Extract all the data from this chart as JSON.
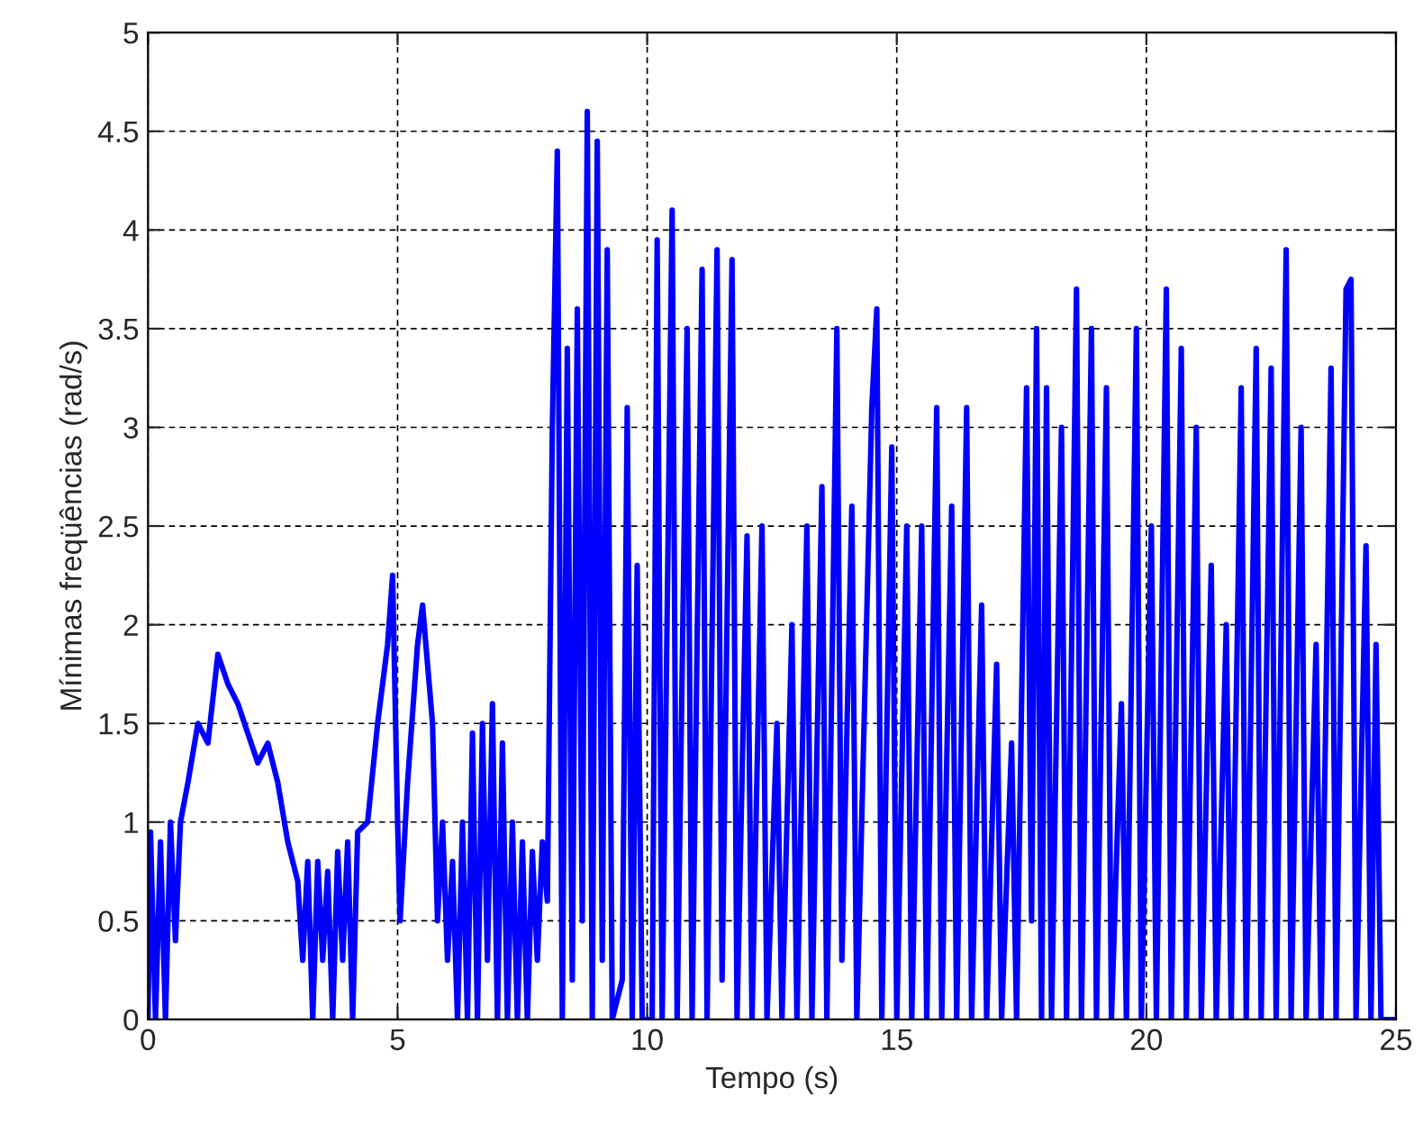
{
  "chart_data": {
    "type": "line",
    "xlabel": "Tempo (s)",
    "ylabel": "Mínimas freqüências (rad/s)",
    "xlim": [
      0,
      25
    ],
    "ylim": [
      0,
      5
    ],
    "xticks": [
      0,
      5,
      10,
      15,
      20,
      25
    ],
    "yticks": [
      0,
      0.5,
      1,
      1.5,
      2,
      2.5,
      3,
      3.5,
      4,
      4.5,
      5
    ],
    "grid": true,
    "marker": "none",
    "line_style": "solid",
    "series": [
      {
        "color": "#0000ff",
        "x": [
          0,
          0.05,
          0.15,
          0.25,
          0.35,
          0.45,
          0.55,
          0.65,
          0.8,
          1.0,
          1.2,
          1.4,
          1.6,
          1.8,
          2.0,
          2.2,
          2.4,
          2.6,
          2.8,
          3.0,
          3.1,
          3.2,
          3.3,
          3.4,
          3.5,
          3.6,
          3.7,
          3.8,
          3.9,
          4.0,
          4.1,
          4.2,
          4.4,
          4.6,
          4.8,
          4.9,
          5.0,
          5.05,
          5.2,
          5.4,
          5.5,
          5.6,
          5.7,
          5.8,
          5.9,
          6.0,
          6.1,
          6.2,
          6.3,
          6.4,
          6.5,
          6.6,
          6.7,
          6.8,
          6.9,
          7.0,
          7.1,
          7.2,
          7.3,
          7.4,
          7.5,
          7.6,
          7.7,
          7.8,
          7.9,
          8.0,
          8.1,
          8.2,
          8.3,
          8.4,
          8.5,
          8.6,
          8.7,
          8.8,
          8.9,
          9.0,
          9.1,
          9.2,
          9.3,
          9.5,
          9.6,
          9.7,
          9.8,
          9.9,
          10.1,
          10.2,
          10.3,
          10.5,
          10.6,
          10.8,
          10.9,
          11.1,
          11.2,
          11.4,
          11.5,
          11.7,
          11.8,
          12.0,
          12.1,
          12.3,
          12.4,
          12.6,
          12.7,
          12.9,
          13.0,
          13.2,
          13.3,
          13.5,
          13.6,
          13.8,
          13.9,
          14.1,
          14.2,
          14.5,
          14.6,
          14.7,
          14.9,
          15.0,
          15.2,
          15.3,
          15.5,
          15.6,
          15.8,
          15.9,
          16.1,
          16.2,
          16.4,
          16.5,
          16.7,
          16.8,
          17.0,
          17.1,
          17.3,
          17.4,
          17.6,
          17.7,
          17.8,
          17.9,
          18.0,
          18.1,
          18.3,
          18.4,
          18.6,
          18.7,
          18.9,
          19.0,
          19.2,
          19.3,
          19.5,
          19.6,
          19.8,
          19.9,
          20.1,
          20.2,
          20.4,
          20.5,
          20.7,
          20.8,
          21.0,
          21.1,
          21.3,
          21.4,
          21.6,
          21.7,
          21.9,
          22.0,
          22.2,
          22.3,
          22.5,
          22.6,
          22.8,
          22.9,
          23.1,
          23.2,
          23.4,
          23.5,
          23.7,
          23.8,
          24.0,
          24.1,
          24.2,
          24.4,
          24.5,
          24.6,
          24.7,
          25
        ],
        "values": [
          0,
          0.95,
          0,
          0.9,
          0,
          1.0,
          0.4,
          1.0,
          1.2,
          1.5,
          1.4,
          1.85,
          1.7,
          1.6,
          1.45,
          1.3,
          1.4,
          1.2,
          0.9,
          0.7,
          0.3,
          0.8,
          0,
          0.8,
          0.3,
          0.75,
          0,
          0.85,
          0.3,
          0.9,
          0,
          0.95,
          1.0,
          1.5,
          1.9,
          2.25,
          1.0,
          0.5,
          1.2,
          1.9,
          2.1,
          1.8,
          1.5,
          0.5,
          1.0,
          0.3,
          0.8,
          0,
          1.0,
          0,
          1.45,
          0,
          1.5,
          0.3,
          1.6,
          0,
          1.4,
          0,
          1.0,
          0,
          0.9,
          0,
          0.85,
          0.3,
          0.9,
          0.6,
          3.0,
          4.4,
          0,
          3.4,
          0.2,
          3.6,
          0.5,
          4.6,
          0,
          4.45,
          0.3,
          3.9,
          0,
          0.2,
          3.1,
          0,
          2.3,
          0,
          0,
          3.95,
          0,
          4.1,
          0,
          3.5,
          0,
          3.8,
          0,
          3.9,
          0.2,
          3.85,
          0,
          2.45,
          0,
          2.5,
          0,
          1.5,
          0,
          2.0,
          0,
          2.5,
          0,
          2.7,
          0,
          3.5,
          0.3,
          2.6,
          0,
          3.1,
          3.6,
          0,
          2.9,
          0,
          2.5,
          0,
          2.5,
          0,
          3.1,
          0,
          2.6,
          0,
          3.1,
          0,
          2.1,
          0,
          1.8,
          0,
          1.4,
          0,
          3.2,
          0.5,
          3.5,
          0,
          3.2,
          0,
          3.0,
          0,
          3.7,
          0,
          3.5,
          0,
          3.2,
          0,
          1.6,
          0,
          3.5,
          0,
          2.5,
          0,
          3.7,
          0,
          3.4,
          0,
          3.0,
          0,
          2.3,
          0,
          2.0,
          0,
          3.2,
          0,
          3.4,
          0,
          3.3,
          0,
          3.9,
          0,
          3.0,
          0,
          1.9,
          0,
          3.3,
          0,
          3.7,
          3.75,
          0,
          2.4,
          0,
          1.9,
          0,
          0
        ]
      }
    ]
  }
}
